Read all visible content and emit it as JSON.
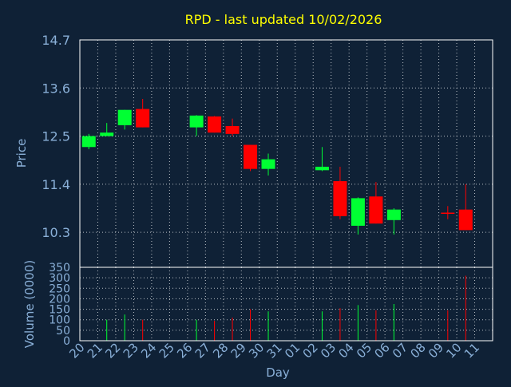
{
  "chart_data": {
    "type": "candlestick",
    "title": "RPD - last updated 10/02/2026",
    "xlabel": "Day",
    "colors": {
      "background": "#0f2136",
      "plot_background": "#0f2136",
      "grid": "#ffffff",
      "axis": "#ffffff",
      "up": "#00ff33",
      "down": "#ff0000",
      "title": "#ffff00",
      "tick_labels": "#8ab0d8",
      "axis_labels": "#8ab0d8"
    },
    "x_ticks": [
      "20",
      "21",
      "22",
      "23",
      "24",
      "25",
      "26",
      "27",
      "28",
      "29",
      "30",
      "31",
      "01",
      "02",
      "03",
      "04",
      "05",
      "06",
      "07",
      "08",
      "09",
      "10",
      "11"
    ],
    "price_panel": {
      "ylabel": "Price",
      "ylim": [
        9.5,
        14.7
      ],
      "y_ticks": [
        "14.7",
        "13.6",
        "12.5",
        "11.4",
        "10.3"
      ],
      "y_tick_values": [
        14.7,
        13.6,
        12.5,
        11.4,
        10.3
      ],
      "grid": true
    },
    "volume_panel": {
      "ylabel": "Volume (0000)",
      "ylim": [
        0,
        350
      ],
      "y_ticks": [
        "350",
        "300",
        "250",
        "200",
        "150",
        "100",
        "50",
        "0"
      ],
      "y_tick_values": [
        350,
        300,
        250,
        200,
        150,
        100,
        50,
        0
      ],
      "grid": true
    },
    "candles": [
      {
        "day": "20",
        "open": 12.25,
        "high": 12.55,
        "low": 12.2,
        "close": 12.5,
        "volume": 0
      },
      {
        "day": "21",
        "open": 12.5,
        "high": 12.8,
        "low": 12.5,
        "close": 12.58,
        "volume": 100
      },
      {
        "day": "22",
        "open": 12.75,
        "high": 13.1,
        "low": 12.65,
        "close": 13.1,
        "volume": 125
      },
      {
        "day": "23",
        "open": 13.12,
        "high": 13.35,
        "low": 12.7,
        "close": 12.7,
        "volume": 100
      },
      {
        "day": "26",
        "open": 12.7,
        "high": 12.98,
        "low": 12.5,
        "close": 12.97,
        "volume": 100
      },
      {
        "day": "27",
        "open": 12.95,
        "high": 12.96,
        "low": 12.58,
        "close": 12.58,
        "volume": 95
      },
      {
        "day": "28",
        "open": 12.73,
        "high": 12.9,
        "low": 12.5,
        "close": 12.55,
        "volume": 110
      },
      {
        "day": "29",
        "open": 12.3,
        "high": 12.3,
        "low": 11.7,
        "close": 11.75,
        "volume": 150
      },
      {
        "day": "30",
        "open": 11.75,
        "high": 12.1,
        "low": 11.6,
        "close": 11.97,
        "volume": 140
      },
      {
        "day": "02",
        "open": 11.72,
        "high": 12.25,
        "low": 11.7,
        "close": 11.8,
        "volume": 140
      },
      {
        "day": "03",
        "open": 11.47,
        "high": 11.8,
        "low": 10.6,
        "close": 10.67,
        "volume": 155
      },
      {
        "day": "04",
        "open": 10.45,
        "high": 11.1,
        "low": 10.25,
        "close": 11.08,
        "volume": 170
      },
      {
        "day": "05",
        "open": 11.12,
        "high": 11.45,
        "low": 10.5,
        "close": 10.5,
        "volume": 145
      },
      {
        "day": "06",
        "open": 10.58,
        "high": 10.85,
        "low": 10.25,
        "close": 10.82,
        "volume": 175
      },
      {
        "day": "09",
        "open": 10.75,
        "high": 10.9,
        "low": 10.6,
        "close": 10.73,
        "volume": 145
      },
      {
        "day": "10",
        "open": 10.82,
        "high": 11.4,
        "low": 10.35,
        "close": 10.35,
        "volume": 310
      }
    ]
  }
}
